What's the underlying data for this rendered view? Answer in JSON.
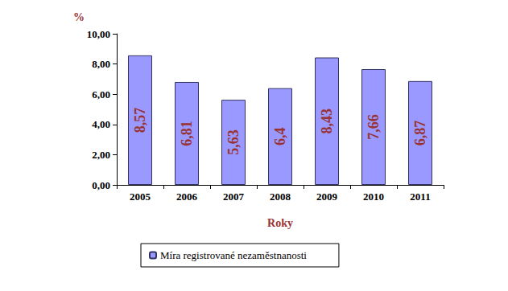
{
  "chart_data": {
    "type": "bar",
    "categories": [
      "2005",
      "2006",
      "2007",
      "2008",
      "2009",
      "2010",
      "2011"
    ],
    "series": [
      {
        "name": "Míra registrované nezaměstnanosti",
        "color": "#9999ff",
        "values": [
          8.57,
          6.81,
          5.63,
          6.4,
          8.43,
          7.66,
          6.87
        ],
        "value_labels": [
          "8,57",
          "6,81",
          "5,63",
          "6,4",
          "8,43",
          "7,66",
          "6,87"
        ]
      }
    ],
    "x_label": "Roky",
    "y_label": "%",
    "ylim": [
      0,
      10
    ],
    "yticks": [
      {
        "value": 0,
        "label": "0,00"
      },
      {
        "value": 2,
        "label": "2,00"
      },
      {
        "value": 4,
        "label": "4,00"
      },
      {
        "value": 6,
        "label": "6,00"
      },
      {
        "value": 8,
        "label": "8,00"
      },
      {
        "value": 10,
        "label": "10,00"
      }
    ],
    "grid": false,
    "legend": "bottom",
    "data_labels": true
  }
}
